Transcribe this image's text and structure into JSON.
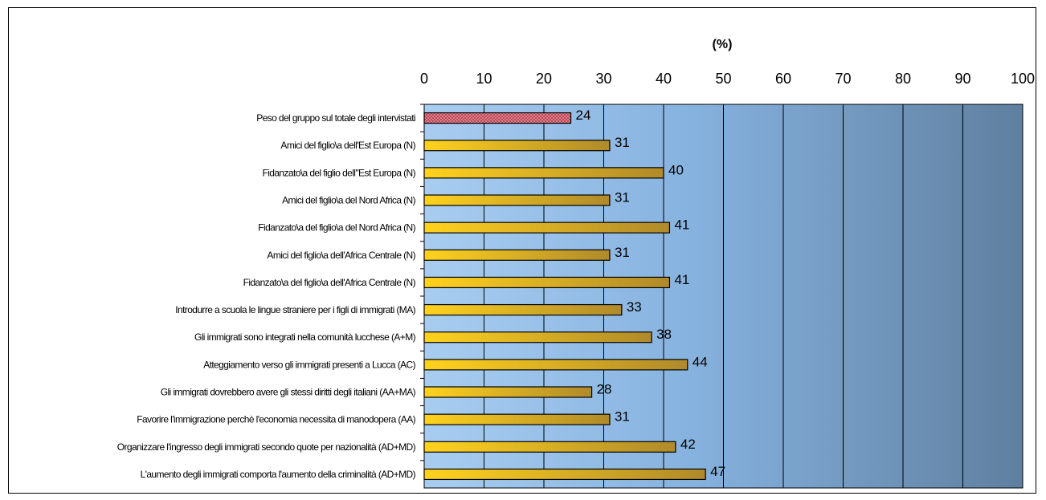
{
  "chart_data": {
    "type": "bar",
    "orientation": "horizontal",
    "xlabel": "(%)",
    "xlim": [
      0,
      100
    ],
    "xticks": [
      "0",
      "10",
      "20",
      "30",
      "40",
      "50",
      "60",
      "70",
      "80",
      "90",
      "100"
    ],
    "categories": [
      "Peso del gruppo sul totale degli intervistati",
      "Amici del figlio\\a dell'Est Europa (N)",
      "Fidanzato\\a del figlio dell\"Est Europa (N)",
      "Amici del figlio\\a del Nord Africa (N)",
      "Fidanzato\\a del figlio\\a del Nord Africa (N)",
      "Amici del figlio\\a dell'Africa Centrale (N)",
      "Fidanzato\\a del figlio\\a dell'Africa Centrale (N)",
      "Introdurre a scuola le lingue straniere per i figli di immigrati (MA)",
      "Gli immigrati sono integrati nella comunità lucchese (A+M)",
      "Atteggiamento verso gli immigrati presenti a Lucca (AC)",
      "Gli immigrati dovrebbero avere gli stessi diritti degli italiani (AA+MA)",
      "Favorire l'immigrazione perchè l'economia necessita di manodopera (AA)",
      "Organizzare l'ingresso degli immigrati secondo quote per nazionalità (AD+MD)",
      "L'aumento degli immigrati comporta l'aumento della criminalità (AD+MD)"
    ],
    "values": [
      24.5,
      31,
      40,
      31,
      41,
      31,
      41,
      33,
      38,
      44,
      28,
      31,
      42,
      47
    ],
    "data_labels": [
      "24",
      "31",
      "40",
      "31",
      "41",
      "31",
      "41",
      "33",
      "38",
      "44",
      "28",
      "31",
      "42",
      "47"
    ],
    "highlight_index": 0,
    "colors": {
      "highlight_fill": "#e07a86",
      "highlight_pattern": "#9a2f3c",
      "bar_light": "#ffd21e",
      "bar_dark": "#b08a2a",
      "bar_stroke": "#000000",
      "plot_bg_light": "#a8cdf0",
      "plot_bg_dark": "#5f7f9f",
      "gridline": "#000000"
    },
    "grid": true,
    "legend": "none"
  }
}
